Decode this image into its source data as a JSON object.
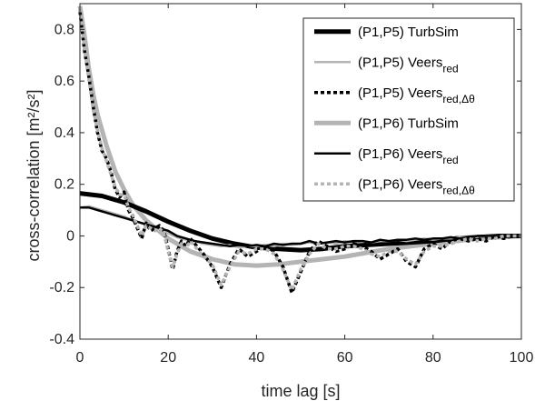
{
  "chart_data": {
    "type": "line",
    "xlabel": "time lag [s]",
    "ylabel": "cross-correlation [m²/s²]",
    "xlim": [
      0,
      100
    ],
    "ylim": [
      -0.4,
      0.9
    ],
    "xticks": [
      0,
      20,
      40,
      60,
      80,
      100
    ],
    "yticks": [
      -0.4,
      -0.2,
      0,
      0.2,
      0.4,
      0.6,
      0.8
    ],
    "grid": false,
    "legend_position": "top-right",
    "series": [
      {
        "name": "(P1,P5) TurbSim",
        "color": "#000000",
        "style": "solid-thick",
        "x": [
          0,
          5,
          10,
          15,
          20,
          25,
          30,
          35,
          40,
          45,
          50,
          55,
          60,
          65,
          70,
          75,
          80,
          85,
          90,
          95,
          100
        ],
        "y": [
          0.165,
          0.155,
          0.13,
          0.095,
          0.055,
          0.02,
          -0.01,
          -0.03,
          -0.045,
          -0.05,
          -0.055,
          -0.05,
          -0.04,
          -0.035,
          -0.03,
          -0.025,
          -0.02,
          -0.01,
          -0.005,
          0.0,
          0.0
        ]
      },
      {
        "name": "(P1,P5) Veers",
        "color": "#b4b4b4",
        "style": "solid-thin",
        "x": [
          0,
          2,
          4,
          6,
          8,
          10,
          12,
          14,
          16,
          18,
          20,
          22,
          24,
          26,
          28,
          30,
          32,
          34,
          36,
          38,
          40,
          42,
          44,
          46,
          48,
          50,
          52,
          54,
          56,
          58,
          60,
          62,
          64,
          66,
          68,
          70,
          72,
          74,
          76,
          78,
          80,
          82,
          84,
          86,
          88,
          90,
          92,
          94,
          96,
          98,
          100
        ],
        "y": [
          0.11,
          0.115,
          0.105,
          0.095,
          0.085,
          0.075,
          0.06,
          0.05,
          0.035,
          0.02,
          0.01,
          -0.005,
          -0.015,
          -0.02,
          -0.03,
          -0.035,
          -0.04,
          -0.035,
          -0.045,
          -0.04,
          -0.04,
          -0.035,
          -0.04,
          -0.03,
          -0.035,
          -0.03,
          -0.025,
          -0.03,
          -0.025,
          -0.03,
          -0.02,
          -0.025,
          -0.02,
          -0.025,
          -0.02,
          -0.02,
          -0.015,
          -0.02,
          -0.015,
          -0.01,
          -0.015,
          -0.01,
          -0.01,
          -0.005,
          -0.005,
          -0.005,
          0.0,
          0.0,
          0.0,
          0.0,
          0.0
        ]
      },
      {
        "name": "(P1,P5) Veers",
        "color": "#000000",
        "style": "dotted-thick",
        "x": [
          0,
          1,
          2,
          3,
          4,
          5,
          6,
          7,
          8,
          9,
          10,
          11,
          12,
          13,
          14,
          15,
          16,
          17,
          18,
          19,
          20,
          21,
          22,
          23,
          24,
          25,
          26,
          28,
          30,
          32,
          34,
          36,
          38,
          40,
          42,
          44,
          46,
          48,
          50,
          52,
          54,
          56,
          58,
          60,
          62,
          64,
          66,
          68,
          70,
          72,
          74,
          76,
          78,
          80,
          82,
          84,
          86,
          88,
          90,
          92,
          94,
          96,
          98,
          100
        ],
        "y": [
          0.87,
          0.72,
          0.62,
          0.5,
          0.4,
          0.33,
          0.3,
          0.25,
          0.18,
          0.15,
          0.17,
          0.1,
          0.07,
          0.03,
          -0.01,
          0.05,
          0.02,
          0.03,
          0.04,
          0.02,
          -0.05,
          -0.13,
          -0.06,
          -0.02,
          -0.04,
          -0.01,
          -0.03,
          -0.07,
          -0.12,
          -0.2,
          -0.11,
          -0.05,
          -0.08,
          -0.06,
          -0.04,
          -0.06,
          -0.12,
          -0.22,
          -0.14,
          -0.06,
          -0.02,
          -0.04,
          -0.06,
          -0.05,
          -0.03,
          -0.04,
          -0.06,
          -0.09,
          -0.07,
          -0.05,
          -0.1,
          -0.12,
          -0.05,
          -0.03,
          -0.05,
          -0.02,
          -0.01,
          -0.02,
          -0.01,
          -0.02,
          0.0,
          -0.01,
          0.0,
          0.0
        ]
      },
      {
        "name": "(P1,P6) TurbSim",
        "color": "#b4b4b4",
        "style": "solid-thick",
        "x": [
          0,
          1,
          2,
          3,
          4,
          5,
          6,
          8,
          10,
          12,
          15,
          20,
          25,
          30,
          35,
          40,
          45,
          50,
          55,
          60,
          65,
          70,
          75,
          80,
          85,
          90,
          95,
          100
        ],
        "y": [
          0.89,
          0.78,
          0.65,
          0.55,
          0.47,
          0.41,
          0.35,
          0.25,
          0.18,
          0.12,
          0.06,
          -0.01,
          -0.06,
          -0.09,
          -0.11,
          -0.115,
          -0.11,
          -0.1,
          -0.09,
          -0.08,
          -0.065,
          -0.05,
          -0.04,
          -0.03,
          -0.02,
          -0.01,
          -0.005,
          0.0
        ]
      },
      {
        "name": "(P1,P6) Veers",
        "color": "#000000",
        "style": "solid-thin",
        "x": [
          0,
          2,
          4,
          6,
          8,
          10,
          12,
          14,
          16,
          18,
          20,
          22,
          24,
          26,
          28,
          30,
          32,
          34,
          36,
          38,
          40,
          42,
          44,
          46,
          48,
          50,
          52,
          54,
          56,
          58,
          60,
          62,
          64,
          66,
          68,
          70,
          72,
          74,
          76,
          78,
          80,
          82,
          84,
          86,
          88,
          90,
          92,
          94,
          96,
          98,
          100
        ],
        "y": [
          0.11,
          0.11,
          0.1,
          0.09,
          0.08,
          0.07,
          0.06,
          0.05,
          0.04,
          0.03,
          0.02,
          0.0,
          -0.01,
          -0.02,
          -0.025,
          -0.03,
          -0.035,
          -0.04,
          -0.035,
          -0.04,
          -0.035,
          -0.04,
          -0.03,
          -0.035,
          -0.03,
          -0.03,
          -0.02,
          -0.03,
          -0.025,
          -0.02,
          -0.025,
          -0.02,
          -0.02,
          -0.025,
          -0.015,
          -0.02,
          -0.015,
          -0.015,
          -0.01,
          -0.015,
          -0.01,
          -0.01,
          -0.005,
          -0.01,
          -0.005,
          0.0,
          0.0,
          0.0,
          0.0,
          0.0,
          0.0
        ]
      },
      {
        "name": "(P1,P6) Veers",
        "color": "#b4b4b4",
        "style": "dotted-thick",
        "x": [
          0,
          1,
          2,
          3,
          4,
          5,
          6,
          7,
          8,
          9,
          10,
          11,
          12,
          13,
          14,
          15,
          16,
          17,
          18,
          19,
          20,
          21,
          22,
          23,
          24,
          25,
          26,
          28,
          30,
          32,
          34,
          36,
          38,
          40,
          42,
          44,
          46,
          48,
          50,
          52,
          54,
          56,
          58,
          60,
          62,
          64,
          66,
          68,
          70,
          72,
          74,
          76,
          78,
          80,
          82,
          84,
          86,
          88,
          90,
          92,
          94,
          96,
          98,
          100
        ],
        "y": [
          0.88,
          0.73,
          0.61,
          0.49,
          0.41,
          0.34,
          0.29,
          0.24,
          0.19,
          0.16,
          0.16,
          0.11,
          0.08,
          0.04,
          0.0,
          0.04,
          0.03,
          0.02,
          0.03,
          0.01,
          -0.06,
          -0.12,
          -0.07,
          -0.03,
          -0.05,
          -0.02,
          -0.04,
          -0.08,
          -0.11,
          -0.19,
          -0.12,
          -0.06,
          -0.07,
          -0.05,
          -0.05,
          -0.07,
          -0.13,
          -0.21,
          -0.13,
          -0.07,
          -0.03,
          -0.05,
          -0.05,
          -0.04,
          -0.04,
          -0.05,
          -0.07,
          -0.08,
          -0.06,
          -0.06,
          -0.09,
          -0.11,
          -0.06,
          -0.04,
          -0.04,
          -0.03,
          -0.02,
          -0.01,
          -0.02,
          -0.01,
          -0.01,
          0.0,
          0.0,
          0.0
        ]
      }
    ]
  },
  "legend": {
    "items": [
      {
        "base": "(P1,P5) TurbSim",
        "sub": "",
        "color": "#000000",
        "style": "solid-thick"
      },
      {
        "base": "(P1,P5) Veers",
        "sub": "red",
        "color": "#b4b4b4",
        "style": "solid-thin"
      },
      {
        "base": "(P1,P5) Veers",
        "sub": "red,Δθ",
        "color": "#000000",
        "style": "dotted-thick"
      },
      {
        "base": "(P1,P6) TurbSim",
        "sub": "",
        "color": "#b4b4b4",
        "style": "solid-thick"
      },
      {
        "base": "(P1,P6) Veers",
        "sub": "red",
        "color": "#000000",
        "style": "solid-thin"
      },
      {
        "base": "(P1,P6) Veers",
        "sub": "red,Δθ",
        "color": "#b4b4b4",
        "style": "dotted-thick"
      }
    ]
  }
}
